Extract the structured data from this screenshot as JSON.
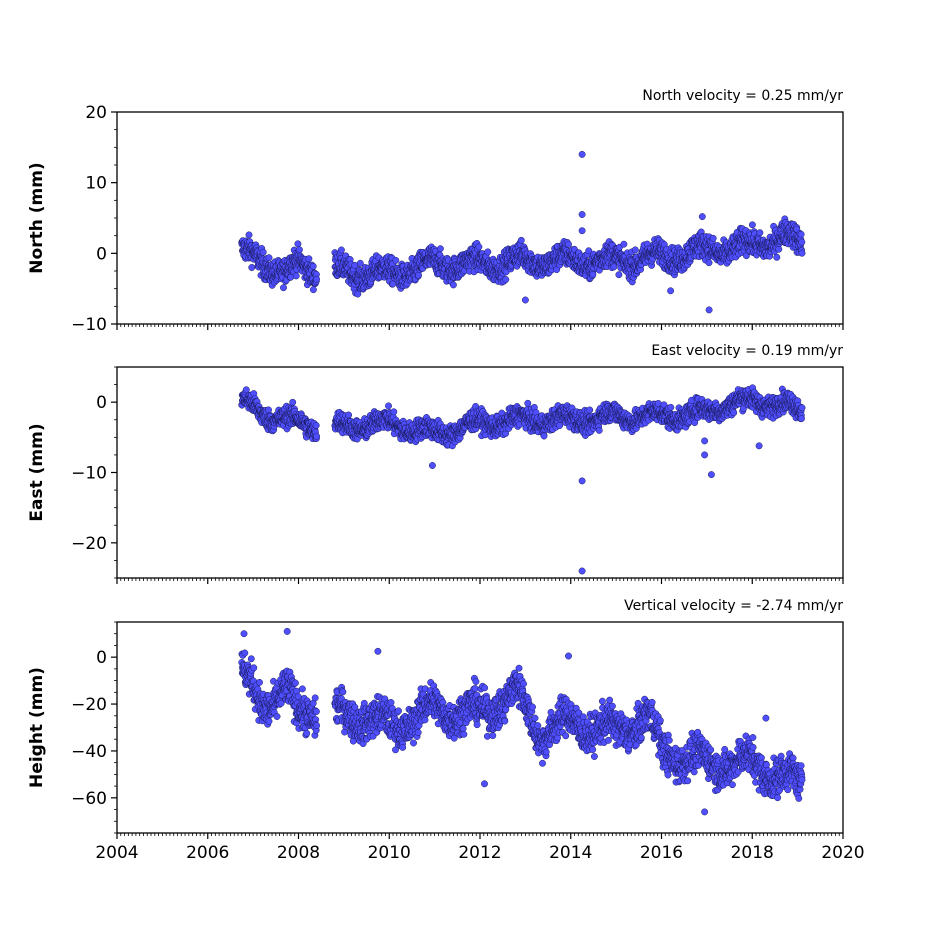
{
  "chart_data": [
    {
      "type": "scatter",
      "ylabel": "North (mm)",
      "annotation": "North velocity = 0.25 mm/yr",
      "xlim": [
        2004,
        2020
      ],
      "ylim": [
        -10,
        20
      ],
      "yticks": [
        -10,
        0,
        10,
        20
      ],
      "ytick_labels": [
        "−10",
        "0",
        "10",
        "20"
      ],
      "xtick_labels_visible": false,
      "series": [
        {
          "start": 2006.75,
          "end": 2019.1,
          "gap": [
            2008.4,
            2008.8
          ],
          "velocity": 0.25,
          "baseline": [
            [
              2006.75,
              0
            ],
            [
              2007.2,
              -1
            ],
            [
              2007.7,
              -3
            ],
            [
              2008.0,
              -1.5
            ],
            [
              2008.4,
              -2.5
            ],
            [
              2008.8,
              -2.5
            ],
            [
              2010.0,
              -3
            ],
            [
              2011.0,
              -1.5
            ],
            [
              2012.0,
              -1.5
            ],
            [
              2013.0,
              -1
            ],
            [
              2014.0,
              -1
            ],
            [
              2015.0,
              -1
            ],
            [
              2016.0,
              -0.5
            ],
            [
              2017.0,
              0.5
            ],
            [
              2018.0,
              1
            ],
            [
              2018.7,
              2.5
            ],
            [
              2019.1,
              1
            ]
          ],
          "spread": 1.6,
          "outliers": [
            [
              2014.25,
              14
            ],
            [
              2014.25,
              5.5
            ],
            [
              2014.25,
              3.2
            ],
            [
              2013.0,
              -6.6
            ],
            [
              2016.2,
              -5.3
            ],
            [
              2017.05,
              -8
            ],
            [
              2016.9,
              5.2
            ]
          ]
        }
      ],
      "color": "#4f4fff",
      "edge_color": "#1a1a5a"
    },
    {
      "type": "scatter",
      "ylabel": "East (mm)",
      "annotation": "East velocity = 0.19 mm/yr",
      "xlim": [
        2004,
        2020
      ],
      "ylim": [
        -25,
        5
      ],
      "yticks": [
        -20,
        -10,
        0
      ],
      "ytick_labels": [
        "−20",
        "−10",
        "0"
      ],
      "xtick_labels_visible": false,
      "series": [
        {
          "start": 2006.75,
          "end": 2019.1,
          "gap": [
            2008.4,
            2008.8
          ],
          "velocity": 0.19,
          "baseline": [
            [
              2006.75,
              0
            ],
            [
              2007.2,
              -1.5
            ],
            [
              2008.0,
              -3
            ],
            [
              2008.4,
              -3.5
            ],
            [
              2008.8,
              -3.5
            ],
            [
              2010.0,
              -3
            ],
            [
              2011.0,
              -4.5
            ],
            [
              2012.0,
              -3
            ],
            [
              2013.0,
              -2.5
            ],
            [
              2014.0,
              -2.5
            ],
            [
              2015.0,
              -2
            ],
            [
              2016.0,
              -2
            ],
            [
              2017.0,
              -1.5
            ],
            [
              2017.5,
              0
            ],
            [
              2018.0,
              0
            ],
            [
              2018.6,
              0
            ],
            [
              2019.1,
              -1.5
            ]
          ],
          "spread": 1.3,
          "outliers": [
            [
              2014.25,
              -11.2
            ],
            [
              2014.25,
              -24
            ],
            [
              2017.1,
              -10.3
            ],
            [
              2016.95,
              -7.5
            ],
            [
              2016.95,
              -5.5
            ],
            [
              2018.15,
              -6.2
            ],
            [
              2010.95,
              -9
            ]
          ]
        }
      ],
      "color": "#4f4fff",
      "edge_color": "#1a1a5a"
    },
    {
      "type": "scatter",
      "ylabel": "Height (mm)",
      "annotation": "Vertical velocity = -2.74 mm/yr",
      "xlim": [
        2004,
        2020
      ],
      "ylim": [
        -75,
        15
      ],
      "yticks": [
        -60,
        -40,
        -20,
        0
      ],
      "ytick_labels": [
        "−60",
        "−40",
        "−20",
        "0"
      ],
      "xticks": [
        2004,
        2006,
        2008,
        2010,
        2012,
        2014,
        2016,
        2018,
        2020
      ],
      "xtick_labels": [
        "2004",
        "2006",
        "2008",
        "2010",
        "2012",
        "2014",
        "2016",
        "2018",
        "2020"
      ],
      "xtick_labels_visible": true,
      "series": [
        {
          "start": 2006.75,
          "end": 2019.1,
          "gap": [
            2008.4,
            2008.8
          ],
          "velocity": -2.74,
          "baseline": [
            [
              2006.75,
              -8
            ],
            [
              2007.2,
              -20
            ],
            [
              2007.7,
              -14
            ],
            [
              2008.0,
              -25
            ],
            [
              2008.4,
              -22
            ],
            [
              2008.8,
              -25
            ],
            [
              2009.5,
              -25
            ],
            [
              2010.0,
              -30
            ],
            [
              2011.0,
              -22
            ],
            [
              2012.0,
              -24
            ],
            [
              2012.8,
              -15
            ],
            [
              2013.3,
              -32
            ],
            [
              2014.0,
              -28
            ],
            [
              2015.0,
              -32
            ],
            [
              2015.7,
              -25
            ],
            [
              2016.0,
              -40
            ],
            [
              2017.0,
              -45
            ],
            [
              2018.0,
              -45
            ],
            [
              2019.1,
              -55
            ]
          ],
          "spread": 7,
          "outliers": [
            [
              2007.75,
              11
            ],
            [
              2006.8,
              10
            ],
            [
              2009.75,
              2.5
            ],
            [
              2013.95,
              0.5
            ],
            [
              2012.1,
              -54
            ],
            [
              2016.95,
              -66
            ],
            [
              2018.3,
              -26
            ]
          ]
        }
      ],
      "color": "#4f4fff",
      "edge_color": "#1a1a5a"
    }
  ]
}
